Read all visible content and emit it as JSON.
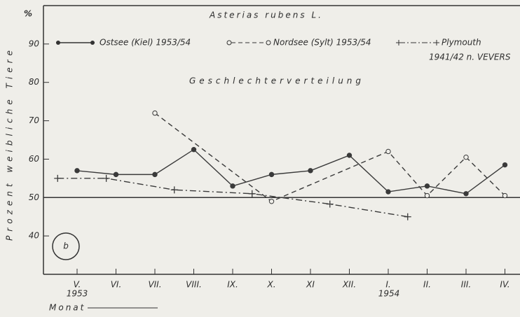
{
  "chart_data": {
    "type": "line",
    "title": "Asterias rubens L.",
    "subtitle": "Geschlechterverteilung",
    "ylabel": "Prozent weibliche Tiere",
    "yunit": "%",
    "xlabel": "Monat",
    "annotations": [
      "1953",
      "1954",
      "b"
    ],
    "categories": [
      "V.",
      "VI.",
      "VII.",
      "VIII.",
      "IX.",
      "X.",
      "XI",
      "XII.",
      "I.",
      "II.",
      "III.",
      "IV."
    ],
    "series": [
      {
        "name": "Ostsee (Kiel) 1953/54",
        "color": "#3a3a3a",
        "style": "solid",
        "marker": "filled",
        "values": [
          57,
          56,
          56,
          62.5,
          53,
          56,
          57,
          61,
          51.5,
          53,
          51,
          58.5
        ]
      },
      {
        "name": "Nordsee (Sylt) 1953/54",
        "color": "#3a3a3a",
        "style": "dashed",
        "marker": "open",
        "x": [
          2,
          5,
          8,
          9,
          10,
          11
        ],
        "values": [
          72,
          49,
          62,
          50.5,
          60.5,
          50.5
        ]
      },
      {
        "name": "Plymouth",
        "name_note": "1941/42 n. VEVERS",
        "color": "#3a3a3a",
        "style": "dashdot",
        "marker": "plus",
        "x": [
          -0.5,
          0.75,
          2.5,
          4.5,
          6.5,
          8.5
        ],
        "values": [
          55,
          55,
          52,
          51,
          48.3,
          45
        ]
      }
    ],
    "reference_line": 50,
    "ylim": [
      30,
      100
    ],
    "yticks": [
      40,
      50,
      60,
      70,
      80,
      90
    ]
  }
}
